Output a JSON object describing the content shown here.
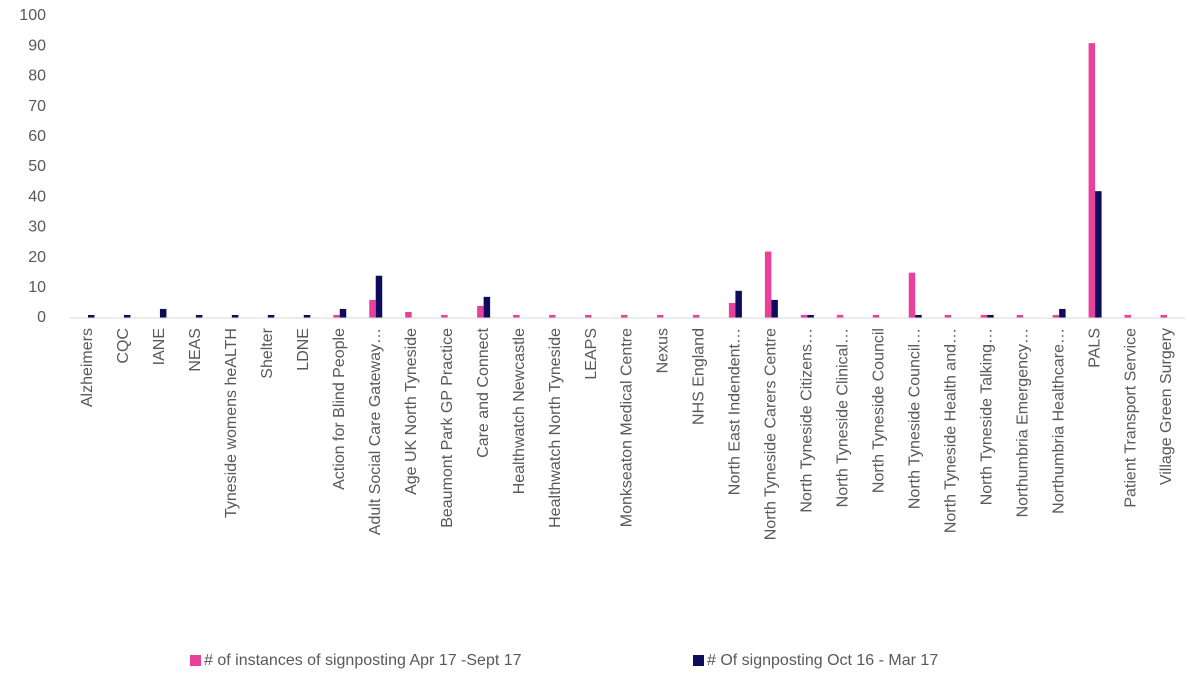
{
  "chart_data": {
    "type": "bar",
    "categories": [
      "Alzheimers",
      "CQC",
      "IANE",
      "NEAS",
      "Tyneside womens heALTH",
      "Shelter",
      "LDNE",
      "Action for Blind People",
      "Adult Social Care Gateway…",
      "Age UK North Tyneside",
      "Beaumont Park GP Practice",
      "Care and Connect",
      "Healthwatch Newcastle",
      "Healthwatch North Tyneside",
      "LEAPS",
      "Monkseaton Medical Centre",
      "Nexus",
      "NHS England",
      "North East Indendent…",
      "North Tyneside Carers Centre",
      "North Tyneside Citizens…",
      "North Tyneside Clinical…",
      "North Tyneside Council",
      "North Tyneside Council…",
      "North Tyneside Health and…",
      "North Tyneside Talking…",
      "Northumbria Emergency…",
      "Northumbria Healthcare…",
      "PALS",
      "Patient Transport Service",
      "Village Green Surgery"
    ],
    "series": [
      {
        "name": "# of instances of signposting Apr 17 -Sept 17",
        "color": "#e8419b",
        "values": [
          0,
          0,
          0,
          0,
          0,
          0,
          0,
          1,
          6,
          2,
          1,
          4,
          1,
          1,
          1,
          1,
          1,
          1,
          5,
          22,
          1,
          1,
          1,
          15,
          1,
          1,
          1,
          1,
          91,
          1,
          1
        ]
      },
      {
        "name": "# Of signposting Oct 16 - Mar 17",
        "color": "#0d0d5c",
        "values": [
          1,
          1,
          3,
          1,
          1,
          1,
          1,
          3,
          14,
          0,
          0,
          7,
          0,
          0,
          0,
          0,
          0,
          0,
          9,
          6,
          1,
          0,
          0,
          1,
          0,
          1,
          0,
          3,
          42,
          0,
          0
        ]
      }
    ],
    "ylim": [
      0,
      100
    ],
    "yticks": [
      0,
      10,
      20,
      30,
      40,
      50,
      60,
      70,
      80,
      90,
      100
    ],
    "grid": false,
    "legend": "bottom"
  }
}
